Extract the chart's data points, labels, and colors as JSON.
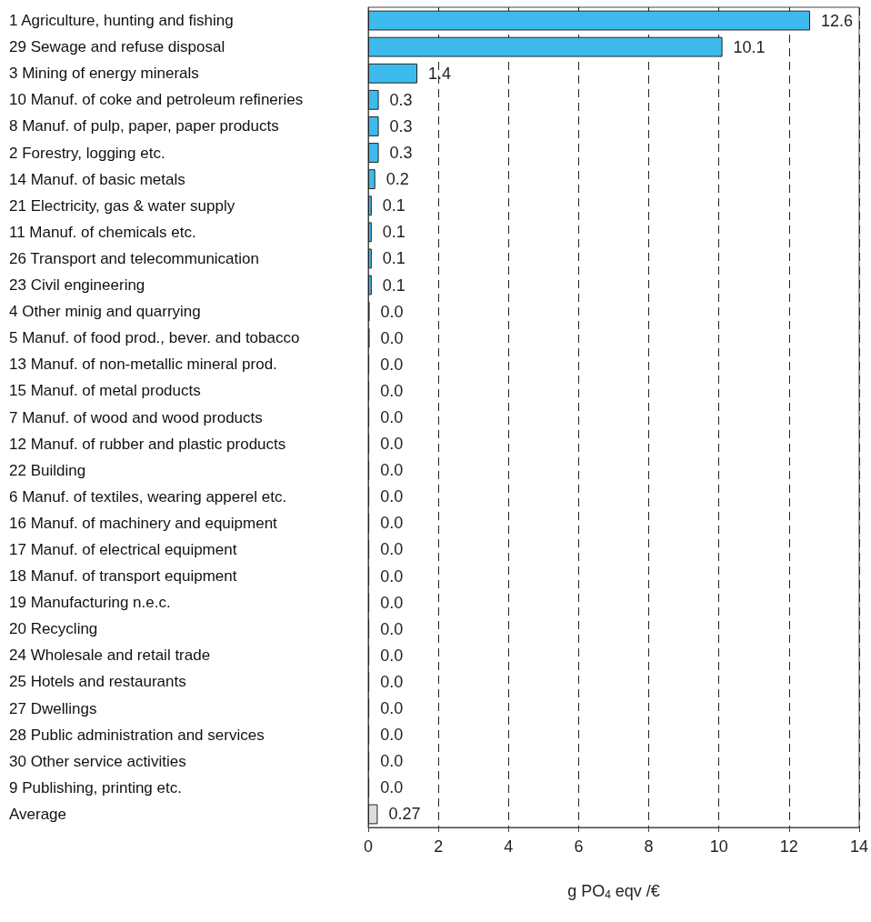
{
  "chart_data": {
    "type": "bar",
    "orientation": "horizontal",
    "categories": [
      "1 Agriculture, hunting and fishing",
      "29 Sewage and refuse disposal",
      "3 Mining of energy minerals",
      "10 Manuf. of coke and petroleum refineries",
      "8 Manuf. of pulp, paper, paper products",
      "2 Forestry, logging etc.",
      "14 Manuf. of basic metals",
      "21 Electricity, gas & water supply",
      "11 Manuf. of chemicals etc.",
      "26 Transport and telecommunication",
      "23 Civil engineering",
      "4 Other minig and quarrying",
      "5 Manuf. of food prod., bever. and tobacco",
      "13 Manuf. of non-metallic mineral prod.",
      "15 Manuf. of metal products",
      "7 Manuf. of wood and wood products",
      "12 Manuf. of rubber and plastic products",
      "22 Building",
      "6 Manuf. of textiles, wearing apperel etc.",
      "16 Manuf. of machinery and equipment",
      "17 Manuf. of electrical equipment",
      "18 Manuf. of transport equipment",
      "19 Manufacturing n.e.c.",
      "20 Recycling",
      "24 Wholesale and retail trade",
      "25 Hotels and restaurants",
      "27 Dwellings",
      "28 Public administration and services",
      "30 Other service activities",
      "9 Publishing, printing etc.",
      "Average"
    ],
    "values": [
      12.6,
      10.1,
      1.4,
      0.3,
      0.3,
      0.3,
      0.2,
      0.1,
      0.1,
      0.1,
      0.1,
      0.04,
      0.04,
      0.03,
      0.03,
      0.03,
      0.03,
      0.03,
      0.03,
      0.03,
      0.03,
      0.03,
      0.03,
      0.03,
      0.03,
      0.03,
      0.03,
      0.03,
      0.03,
      0.03,
      0.27
    ],
    "value_labels": [
      "12.6",
      "10.1",
      "1.4",
      "0.3",
      "0.3",
      "0.3",
      "0.2",
      "0.1",
      "0.1",
      "0.1",
      "0.1",
      "0.0",
      "0.0",
      "0.0",
      "0.0",
      "0.0",
      "0.0",
      "0.0",
      "0.0",
      "0.0",
      "0.0",
      "0.0",
      "0.0",
      "0.0",
      "0.0",
      "0.0",
      "0.0",
      "0.0",
      "0.0",
      "0.0",
      "0.27"
    ],
    "colors": [
      "#3dbbee",
      "#3dbbee",
      "#3dbbee",
      "#3dbbee",
      "#3dbbee",
      "#3dbbee",
      "#3dbbee",
      "#3dbbee",
      "#3dbbee",
      "#3dbbee",
      "#3dbbee",
      "#3dbbee",
      "#3dbbee",
      "#3dbbee",
      "#3dbbee",
      "#3dbbee",
      "#3dbbee",
      "#3dbbee",
      "#3dbbee",
      "#3dbbee",
      "#3dbbee",
      "#3dbbee",
      "#3dbbee",
      "#3dbbee",
      "#3dbbee",
      "#3dbbee",
      "#3dbbee",
      "#3dbbee",
      "#3dbbee",
      "#3dbbee",
      "#dcdcdc"
    ],
    "xlabel": "g PO$_{4}$ eqv /€",
    "xlim": [
      0,
      14
    ],
    "xticks": [
      0,
      2,
      4,
      6,
      8,
      10,
      12,
      14
    ],
    "grid": "x"
  }
}
